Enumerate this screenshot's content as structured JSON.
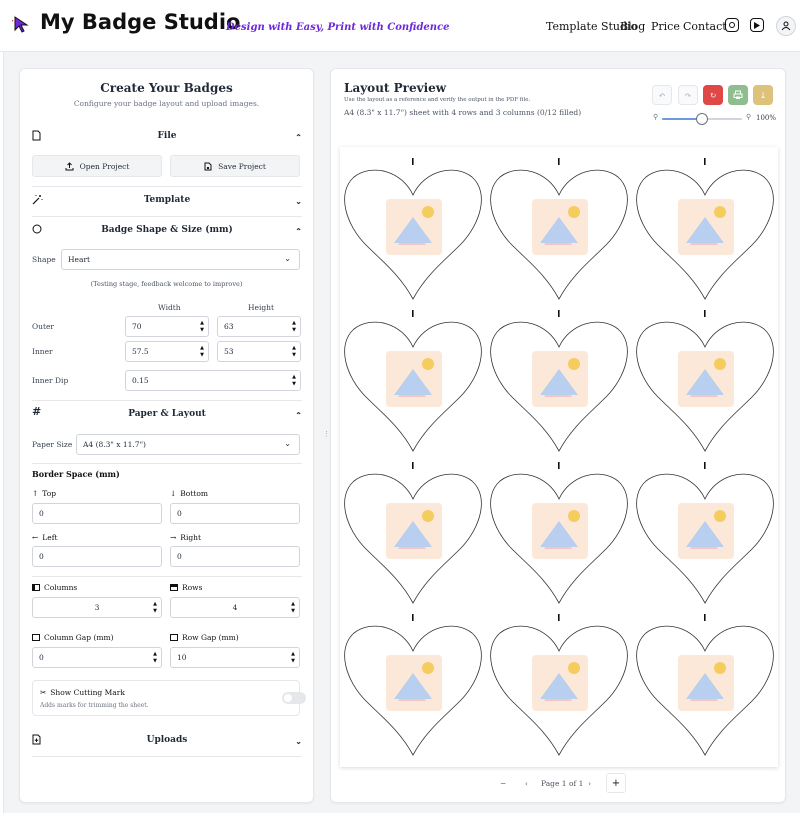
{
  "header": {
    "brand": "My Badge Studio",
    "tagline": "Design with Easy, Print with Confidence",
    "nav": [
      "Template Studio",
      "Blog",
      "Price",
      "Contact"
    ]
  },
  "left": {
    "title": "Create Your Badges",
    "subtitle": "Configure your badge layout and upload images.",
    "file": {
      "title": "File",
      "open": "Open Project",
      "save": "Save Project"
    },
    "template": {
      "title": "Template"
    },
    "shape": {
      "title": "Badge Shape & Size (mm)",
      "shape_label": "Shape",
      "shape_value": "Heart",
      "note": "(Testing stage, feedback welcome to improve)",
      "width_label": "Width",
      "height_label": "Height",
      "outer_label": "Outer",
      "outer_w": "70",
      "outer_h": "63",
      "inner_label": "Inner",
      "inner_w": "57.5",
      "inner_h": "53",
      "dip_label": "Inner Dip",
      "dip": "0.15"
    },
    "paper": {
      "title": "Paper & Layout",
      "size_label": "Paper Size",
      "size_value": "A4 (8.3\" x 11.7\")",
      "border_title": "Border Space (mm)",
      "top_label": "Top",
      "top": "0",
      "bottom_label": "Bottom",
      "bottom": "0",
      "left_label": "Left",
      "left": "0",
      "right_label": "Right",
      "right": "0",
      "columns_label": "Columns",
      "columns": "3",
      "rows_label": "Rows",
      "rows": "4",
      "colgap_label": "Column Gap (mm)",
      "colgap": "0",
      "rowgap_label": "Row Gap (mm)",
      "rowgap": "10",
      "cut_title": "Show Cutting Mark",
      "cut_desc": "Adds marks for trimming the sheet."
    },
    "uploads": {
      "title": "Uploads"
    }
  },
  "preview": {
    "title": "Layout Preview",
    "hint": "Use the layout as a reference and verify the output in the PDF file.",
    "summary": "A4 (8.3\" x 11.7\") sheet with 4 rows and 3 columns (0/12 filled)",
    "zoom": "100%",
    "zoom_fraction": 0.5,
    "page": "Page 1 of 1",
    "rows": 4,
    "cols": 3
  },
  "colors": {
    "accent": "#6d28d9",
    "reset": "#e04848",
    "print": "#8fbd8f",
    "download": "#dcc27a"
  },
  "icons": [
    "cursor-icon",
    "instagram-icon",
    "youtube-icon",
    "user-icon",
    "undo-icon",
    "redo-icon",
    "reset-icon",
    "print-icon",
    "download-icon",
    "zoom-out-icon",
    "zoom-in-icon",
    "file-icon",
    "wand-icon",
    "circle-icon",
    "hash-icon",
    "upload-icon"
  ]
}
